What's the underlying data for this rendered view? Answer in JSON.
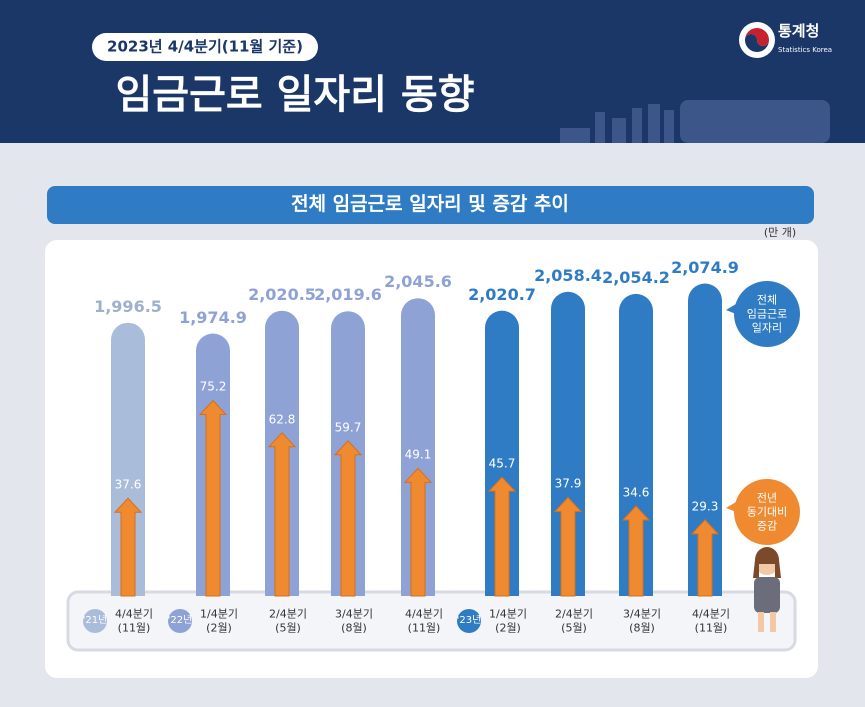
{
  "header": {
    "badge": "2023년 4/4분기(11월 기준)",
    "title": "임금근로 일자리 동향",
    "org": "통계청",
    "org_en": "Statistics Korea"
  },
  "chart_data": {
    "type": "bar",
    "title": "전체 임금근로 일자리 및 증감 추이",
    "unit": "(만 개)",
    "categories": [
      "4/4분기\n(11월)",
      "1/4분기\n(2월)",
      "2/4분기\n(5월)",
      "3/4분기\n(8월)",
      "4/4분기\n(11월)",
      "1/4분기\n(2월)",
      "2/4분기\n(5월)",
      "3/4분기\n(8월)",
      "4/4분기\n(11월)"
    ],
    "years": [
      "'21년",
      "'22년",
      null,
      null,
      null,
      "'23년",
      null,
      null,
      null
    ],
    "series": [
      {
        "name": "전체\n임금근로\n일자리",
        "color": "#2f7cc4",
        "colors": [
          "#a9bcd9",
          "#8fa2d6",
          "#8fa2d6",
          "#8fa2d6",
          "#8fa2d6",
          "#2f7cc4",
          "#2f7cc4",
          "#2f7cc4",
          "#2f7cc4"
        ],
        "values": [
          1996.5,
          1974.9,
          2020.5,
          2019.6,
          2045.6,
          2020.7,
          2058.4,
          2054.2,
          2074.9
        ],
        "value_labels": [
          "1,996.5",
          "1,974.9",
          "2,020.5",
          "2,019.6",
          "2,045.6",
          "2,020.7",
          "2,058.4",
          "2,054.2",
          "2,074.9"
        ]
      },
      {
        "name": "전년\n동기대비\n증감",
        "color": "#f08a30",
        "axis": "y2",
        "values": [
          37.6,
          75.2,
          62.8,
          59.7,
          49.1,
          45.7,
          37.9,
          34.6,
          29.3
        ]
      }
    ],
    "ylim": [
      1450,
      2100
    ],
    "y2lim": [
      0,
      125
    ]
  }
}
